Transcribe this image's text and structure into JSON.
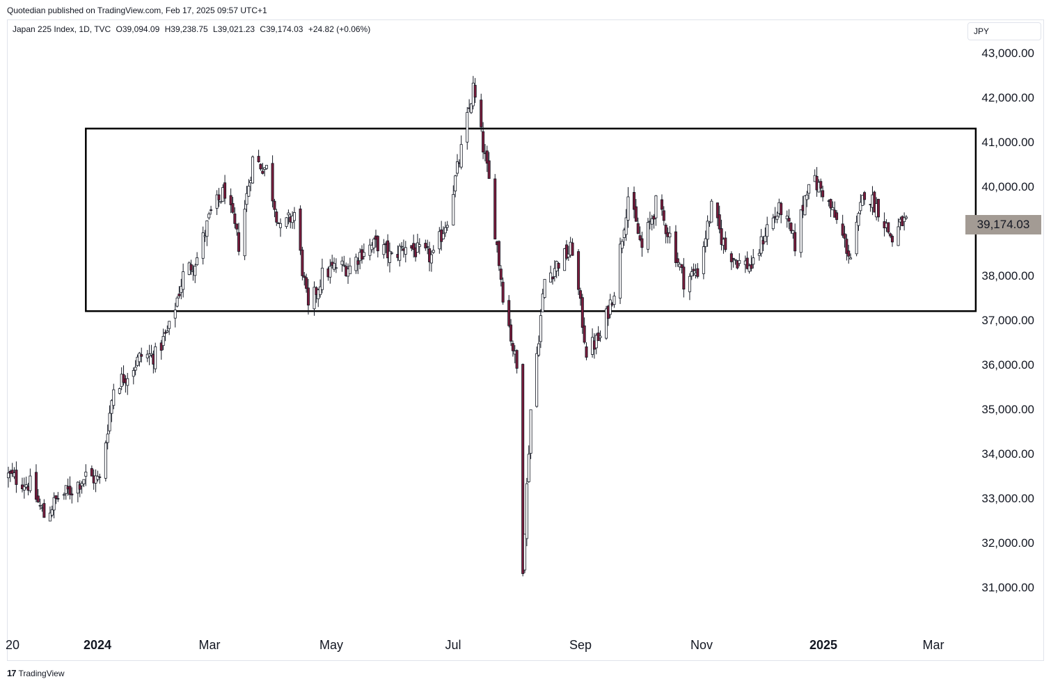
{
  "header": {
    "publisher": "Quotedian published on TradingView.com, Feb 17, 2025 09:57 UTC+1"
  },
  "legend": {
    "symbol": "Japan 225 Index, 1D, TVC",
    "open": "O39,094.09",
    "high": "H39,238.75",
    "low": "L39,021.23",
    "close": "C39,174.03",
    "change": "+24.82 (+0.06%)"
  },
  "currency": "JPY",
  "last_price_label": "39,174.03",
  "footer": {
    "logo": "17",
    "brand": "TradingView"
  },
  "colors": {
    "up": "#ffffff",
    "down": "#7b1c3c",
    "wick": "#131722",
    "border": "#131722",
    "tag": "#a39b94"
  },
  "chart_data": {
    "type": "candlestick",
    "symbol": "Japan 225 Index",
    "interval": "1D",
    "x_tick_labels": [
      "20",
      "2024",
      "Mar",
      "May",
      "Jul",
      "Sep",
      "Nov",
      "2025",
      "Mar"
    ],
    "y_tick_labels": [
      "43,000.00",
      "42,000.00",
      "41,000.00",
      "40,000.00",
      "38,000.00",
      "37,000.00",
      "36,000.00",
      "35,000.00",
      "34,000.00",
      "33,000.00",
      "32,000.00",
      "31,000.00"
    ],
    "ylim": [
      30200,
      43600
    ],
    "ytick_values": [
      43000,
      42000,
      41000,
      40000,
      38000,
      37000,
      36000,
      35000,
      34000,
      33000,
      32000,
      31000
    ],
    "range_box": {
      "start": "2023-12-29",
      "end": "2025-03-21",
      "high": 41300,
      "low": 37200
    },
    "anchors": [
      [
        "2023-11-20",
        33500
      ],
      [
        "2023-12-01",
        33300
      ],
      [
        "2023-12-08",
        32600
      ],
      [
        "2023-12-15",
        33000
      ],
      [
        "2023-12-22",
        33200
      ],
      [
        "2023-12-29",
        33500
      ],
      [
        "2024-01-05",
        33400
      ],
      [
        "2024-01-12",
        35500
      ],
      [
        "2024-01-19",
        35800
      ],
      [
        "2024-01-26",
        36200
      ],
      [
        "2024-02-02",
        36200
      ],
      [
        "2024-02-09",
        36800
      ],
      [
        "2024-02-16",
        38000
      ],
      [
        "2024-02-23",
        38400
      ],
      [
        "2024-03-01",
        39400
      ],
      [
        "2024-03-08",
        39900
      ],
      [
        "2024-03-15",
        38700
      ],
      [
        "2024-03-22",
        40600
      ],
      [
        "2024-03-29",
        40400
      ],
      [
        "2024-04-05",
        39000
      ],
      [
        "2024-04-12",
        39400
      ],
      [
        "2024-04-19",
        37200
      ],
      [
        "2024-04-26",
        38000
      ],
      [
        "2024-05-03",
        38200
      ],
      [
        "2024-05-10",
        38200
      ],
      [
        "2024-05-17",
        38600
      ],
      [
        "2024-05-24",
        38700
      ],
      [
        "2024-05-31",
        38400
      ],
      [
        "2024-06-07",
        38700
      ],
      [
        "2024-06-14",
        38500
      ],
      [
        "2024-06-21",
        38400
      ],
      [
        "2024-06-28",
        39300
      ],
      [
        "2024-07-05",
        40800
      ],
      [
        "2024-07-11",
        42200
      ],
      [
        "2024-07-19",
        40100
      ],
      [
        "2024-07-26",
        37600
      ],
      [
        "2024-08-02",
        35900
      ],
      [
        "2024-08-05",
        31500
      ],
      [
        "2024-08-09",
        35000
      ],
      [
        "2024-08-16",
        37900
      ],
      [
        "2024-08-23",
        38300
      ],
      [
        "2024-08-30",
        38600
      ],
      [
        "2024-09-06",
        36300
      ],
      [
        "2024-09-13",
        36600
      ],
      [
        "2024-09-20",
        37700
      ],
      [
        "2024-09-27",
        39800
      ],
      [
        "2024-10-04",
        38600
      ],
      [
        "2024-10-11",
        39600
      ],
      [
        "2024-10-18",
        38900
      ],
      [
        "2024-10-25",
        37900
      ],
      [
        "2024-11-01",
        38100
      ],
      [
        "2024-11-08",
        39500
      ],
      [
        "2024-11-15",
        38600
      ],
      [
        "2024-11-22",
        38300
      ],
      [
        "2024-11-29",
        38200
      ],
      [
        "2024-12-06",
        39100
      ],
      [
        "2024-12-13",
        39500
      ],
      [
        "2024-12-20",
        38700
      ],
      [
        "2024-12-27",
        40200
      ],
      [
        "2025-01-03",
        39900
      ],
      [
        "2025-01-10",
        39200
      ],
      [
        "2025-01-17",
        38400
      ],
      [
        "2025-01-24",
        39900
      ],
      [
        "2025-01-31",
        39500
      ],
      [
        "2025-02-07",
        38800
      ],
      [
        "2025-02-12",
        39200
      ],
      [
        "2025-02-14",
        39174
      ]
    ]
  }
}
